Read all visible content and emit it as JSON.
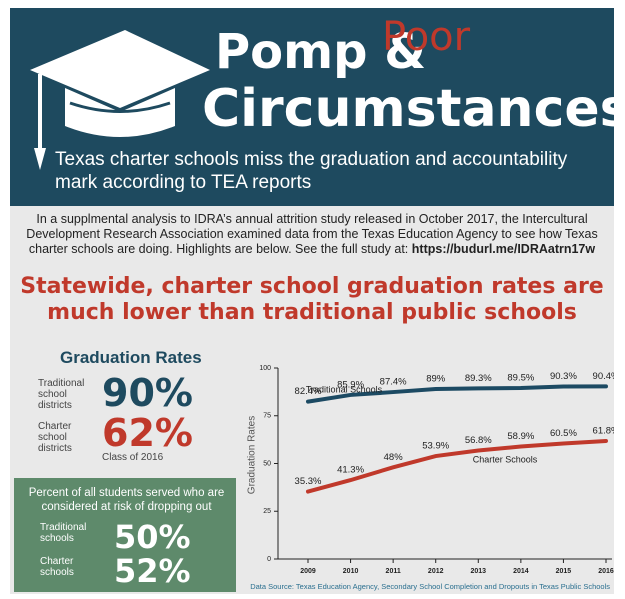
{
  "header": {
    "title_line1": "Pomp &",
    "title_insert": "Poor",
    "title_line2": "Circumstances",
    "subtitle": "Texas charter schools miss the graduation and accountability mark according to TEA reports"
  },
  "intro": {
    "text": "In a supplmental analysis to IDRA’s annual attrition study released in October 2017, the Intercultural Development Research Association examined data from the Texas Education Agency to see how Texas charter schools are doing. Highlights are below. See the full study at:",
    "link": "https://budurl.me/IDRAatrn17w"
  },
  "headline": "Statewide, charter school graduation rates are much lower than traditional public schools",
  "grad_rates": {
    "title": "Graduation Rates",
    "rows": [
      {
        "label": "Traditional school districts",
        "value": "90%"
      },
      {
        "label": "Charter school districts",
        "value": "62%"
      }
    ],
    "note": "Class of 2016"
  },
  "risk": {
    "title": "Percent of all students served who are considered at risk of dropping out",
    "rows": [
      {
        "label": "Traditional schools",
        "value": "50%"
      },
      {
        "label": "Charter schools",
        "value": "52%"
      }
    ]
  },
  "chart_data": {
    "type": "line",
    "y_label": "Graduation Rates",
    "categories": [
      "2009",
      "2010",
      "2011",
      "2012",
      "2013",
      "2014",
      "2015",
      "2016"
    ],
    "ylim": [
      0,
      100
    ],
    "yticks": [
      0,
      25,
      50,
      75,
      100
    ],
    "series": [
      {
        "name": "Traditional Schools",
        "color": "#1c4a63",
        "values": [
          82.4,
          85.9,
          87.4,
          89,
          89.3,
          89.5,
          90.3,
          90.4
        ],
        "value_labels": [
          "82.4%",
          "85.9%",
          "87.4%",
          "89%",
          "89.3%",
          "89.5%",
          "90.3%",
          "90.4%"
        ]
      },
      {
        "name": "Charter Schools",
        "color": "#c0392b",
        "values": [
          35.3,
          41.3,
          48,
          53.9,
          56.8,
          58.9,
          60.5,
          61.8
        ],
        "value_labels": [
          "35.3%",
          "41.3%",
          "48%",
          "53.9%",
          "56.8%",
          "58.9%",
          "60.5%",
          "61.8%"
        ]
      }
    ]
  },
  "source": "Data Source: Texas Education Agency, Secondary School Completion and Dropouts in Texas Public Schools"
}
